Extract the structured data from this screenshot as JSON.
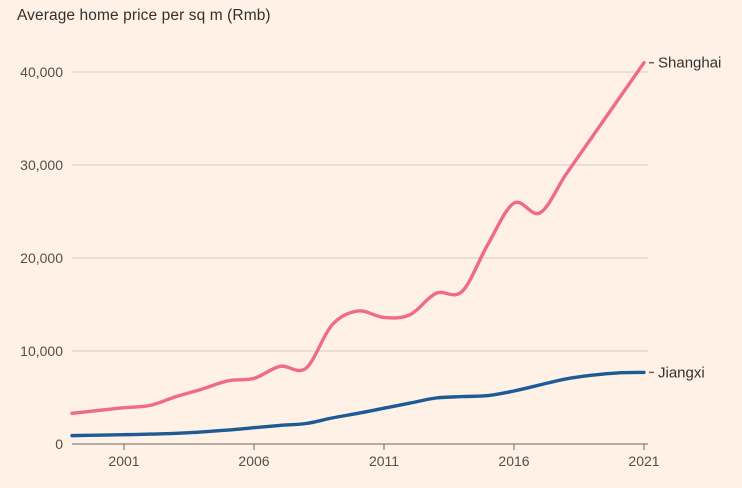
{
  "title": "Average home price per sq m (Rmb)",
  "colors": {
    "background": "#fff1e5",
    "shanghai_line": "#ef6a8c",
    "jiangxi_line": "#1d5a96",
    "gridline": "#d5c9bd",
    "axis": "#6f6862",
    "title_text": "#33302e",
    "tick_text": "#54504b"
  },
  "chart_data": {
    "type": "line",
    "title": "Average home price per sq m (Rmb)",
    "xlabel": "",
    "ylabel": "Average home price per sq m (Rmb)",
    "grid": true,
    "legend_position": "line-end-labels",
    "xlim": [
      1999,
      2021
    ],
    "ylim": [
      0,
      40000
    ],
    "x_ticks": [
      2001,
      2006,
      2011,
      2016,
      2021
    ],
    "x_tick_labels": [
      "2001",
      "2006",
      "2011",
      "2016",
      "2021"
    ],
    "y_ticks": [
      0,
      10000,
      20000,
      30000,
      40000
    ],
    "y_tick_labels": [
      "0",
      "10,000",
      "20,000",
      "30,000",
      "40,000"
    ],
    "x": [
      1999,
      2000,
      2001,
      2002,
      2003,
      2004,
      2005,
      2006,
      2007,
      2008,
      2009,
      2010,
      2011,
      2012,
      2013,
      2014,
      2015,
      2016,
      2017,
      2018,
      2019,
      2020,
      2021
    ],
    "series": [
      {
        "name": "Shanghai",
        "color": "#ef6a8c",
        "values": [
          3300,
          3600,
          3900,
          4150,
          5100,
          5900,
          6800,
          7050,
          8350,
          8150,
          12800,
          14300,
          13600,
          13900,
          16200,
          16400,
          21500,
          25900,
          24850,
          29000,
          33000,
          37000,
          41000
        ]
      },
      {
        "name": "Jiangxi",
        "color": "#1d5a96",
        "values": [
          900,
          950,
          1000,
          1060,
          1150,
          1300,
          1500,
          1750,
          2000,
          2200,
          2800,
          3300,
          3850,
          4400,
          4950,
          5100,
          5200,
          5700,
          6350,
          7000,
          7400,
          7650,
          7700
        ]
      }
    ]
  }
}
